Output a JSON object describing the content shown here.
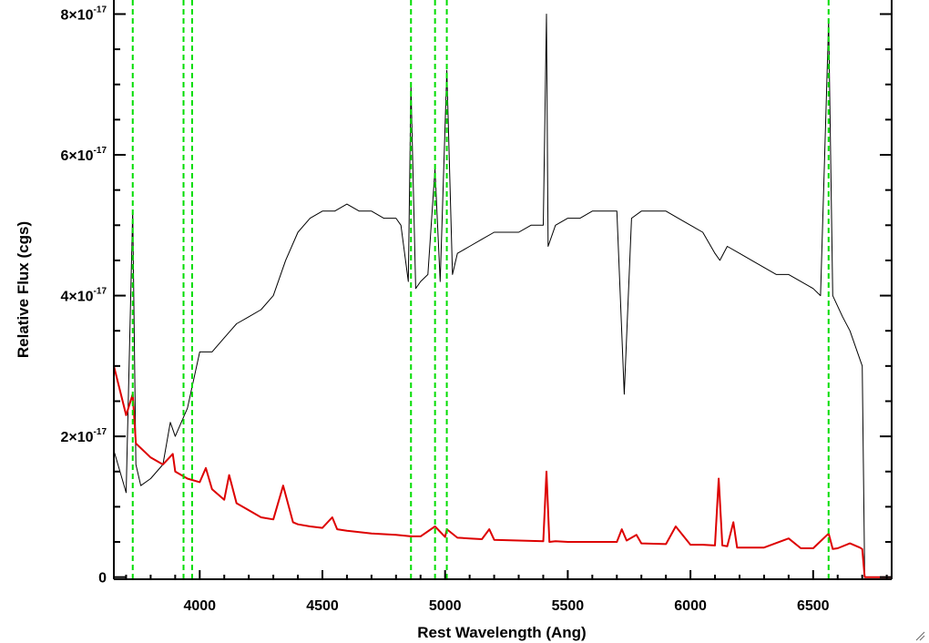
{
  "chart_data": {
    "type": "line",
    "title": "",
    "xlabel": "Rest Wavelength (Ang)",
    "ylabel": "Relative Flux (cgs)",
    "xlim": [
      3650,
      6820
    ],
    "ylim": [
      -3e-19,
      8.2e-17
    ],
    "x_ticks": [
      {
        "value": 4000,
        "label": "4000"
      },
      {
        "value": 4500,
        "label": "4500"
      },
      {
        "value": 5000,
        "label": "5000"
      },
      {
        "value": 5500,
        "label": "5500"
      },
      {
        "value": 6000,
        "label": "6000"
      },
      {
        "value": 6500,
        "label": "6500"
      }
    ],
    "y_ticks": [
      {
        "value": 0,
        "mantissa": "0",
        "exponent": ""
      },
      {
        "value": 2e-17,
        "mantissa": "2×10",
        "exponent": "-17"
      },
      {
        "value": 4e-17,
        "mantissa": "4×10",
        "exponent": "-17"
      },
      {
        "value": 6e-17,
        "mantissa": "6×10",
        "exponent": "-17"
      },
      {
        "value": 8e-17,
        "mantissa": "8×10",
        "exponent": "-17"
      }
    ],
    "grid": false,
    "series": [
      {
        "color": "#000000",
        "x": [
          3650,
          3700,
          3727,
          3740,
          3760,
          3800,
          3850,
          3880,
          3900,
          3950,
          4000,
          4050,
          4100,
          4150,
          4200,
          4250,
          4300,
          4350,
          4400,
          4450,
          4500,
          4550,
          4600,
          4650,
          4700,
          4750,
          4800,
          4820,
          4850,
          4861,
          4880,
          4900,
          4930,
          4959,
          4980,
          5007,
          5030,
          5050,
          5100,
          5150,
          5200,
          5250,
          5300,
          5350,
          5400,
          5413,
          5420,
          5450,
          5500,
          5550,
          5600,
          5650,
          5700,
          5730,
          5760,
          5800,
          5850,
          5900,
          5950,
          6000,
          6050,
          6100,
          6120,
          6150,
          6200,
          6250,
          6300,
          6350,
          6400,
          6450,
          6500,
          6530,
          6563,
          6580,
          6620,
          6650,
          6680,
          6700,
          6710,
          6820
        ],
        "y": [
          1.8e-17,
          1.2e-17,
          5.2e-17,
          1.6e-17,
          1.3e-17,
          1.4e-17,
          1.6e-17,
          2.2e-17,
          2e-17,
          2.4e-17,
          3.2e-17,
          3.2e-17,
          3.4e-17,
          3.6e-17,
          3.7e-17,
          3.8e-17,
          4e-17,
          4.5e-17,
          4.9e-17,
          5.1e-17,
          5.2e-17,
          5.2e-17,
          5.3e-17,
          5.2e-17,
          5.2e-17,
          5.1e-17,
          5.1e-17,
          5e-17,
          4.2e-17,
          7e-17,
          4.1e-17,
          4.2e-17,
          4.3e-17,
          5.8e-17,
          4.2e-17,
          7.2e-17,
          4.3e-17,
          4.6e-17,
          4.7e-17,
          4.8e-17,
          4.9e-17,
          4.9e-17,
          4.9e-17,
          5e-17,
          5e-17,
          8e-17,
          4.7e-17,
          5e-17,
          5.1e-17,
          5.1e-17,
          5.2e-17,
          5.2e-17,
          5.2e-17,
          2.6e-17,
          5.1e-17,
          5.2e-17,
          5.2e-17,
          5.2e-17,
          5.1e-17,
          5e-17,
          4.9e-17,
          4.6e-17,
          4.5e-17,
          4.7e-17,
          4.6e-17,
          4.5e-17,
          4.4e-17,
          4.3e-17,
          4.3e-17,
          4.2e-17,
          4.1e-17,
          4e-17,
          7.9e-17,
          4e-17,
          3.7e-17,
          3.5e-17,
          3.2e-17,
          3e-17,
          0,
          0
        ]
      },
      {
        "color": "#dd0000",
        "x": [
          3650,
          3700,
          3727,
          3740,
          3800,
          3850,
          3890,
          3900,
          3950,
          4000,
          4025,
          4050,
          4100,
          4120,
          4150,
          4200,
          4250,
          4300,
          4340,
          4380,
          4400,
          4450,
          4500,
          4540,
          4560,
          4600,
          4700,
          4800,
          4861,
          4900,
          4959,
          5000,
          5007,
          5050,
          5100,
          5150,
          5180,
          5200,
          5300,
          5400,
          5413,
          5425,
          5450,
          5500,
          5600,
          5700,
          5720,
          5740,
          5780,
          5800,
          5900,
          5940,
          6000,
          6050,
          6100,
          6115,
          6130,
          6150,
          6175,
          6190,
          6200,
          6300,
          6400,
          6450,
          6500,
          6563,
          6580,
          6600,
          6650,
          6690,
          6700,
          6710,
          6820
        ],
        "y": [
          3e-17,
          2.3e-17,
          2.6e-17,
          1.9e-17,
          1.7e-17,
          1.6e-17,
          1.75e-17,
          1.5e-17,
          1.4e-17,
          1.35e-17,
          1.55e-17,
          1.25e-17,
          1.1e-17,
          1.45e-17,
          1.05e-17,
          9.5e-18,
          8.5e-18,
          8.2e-18,
          1.3e-17,
          7.8e-18,
          7.5e-18,
          7.2e-18,
          7e-18,
          8.5e-18,
          6.8e-18,
          6.6e-18,
          6.2e-18,
          6e-18,
          5.8e-18,
          5.8e-18,
          7.2e-18,
          5.7e-18,
          6.8e-18,
          5.6e-18,
          5.5e-18,
          5.4e-18,
          6.8e-18,
          5.3e-18,
          5.2e-18,
          5.1e-18,
          1.5e-17,
          5e-18,
          5.1e-18,
          5e-18,
          5e-18,
          5e-18,
          6.8e-18,
          5.2e-18,
          6e-18,
          4.8e-18,
          4.7e-18,
          7.2e-18,
          4.6e-18,
          4.6e-18,
          4.5e-18,
          1.4e-17,
          4.5e-18,
          4.4e-18,
          7.8e-18,
          4.2e-18,
          4.2e-18,
          4.2e-18,
          5.5e-18,
          4.1e-18,
          4.1e-18,
          6.2e-18,
          4e-18,
          4.1e-18,
          4.8e-18,
          4.2e-18,
          4e-18,
          0,
          0
        ]
      }
    ],
    "reference_lines": {
      "color": "#00dd00",
      "style": "dashed",
      "x": [
        3727,
        3934,
        3969,
        4861,
        4959,
        5007,
        6563
      ]
    }
  },
  "colors": {
    "axes": "#000000"
  },
  "icons": {
    "corner": "resize-grip-icon"
  }
}
